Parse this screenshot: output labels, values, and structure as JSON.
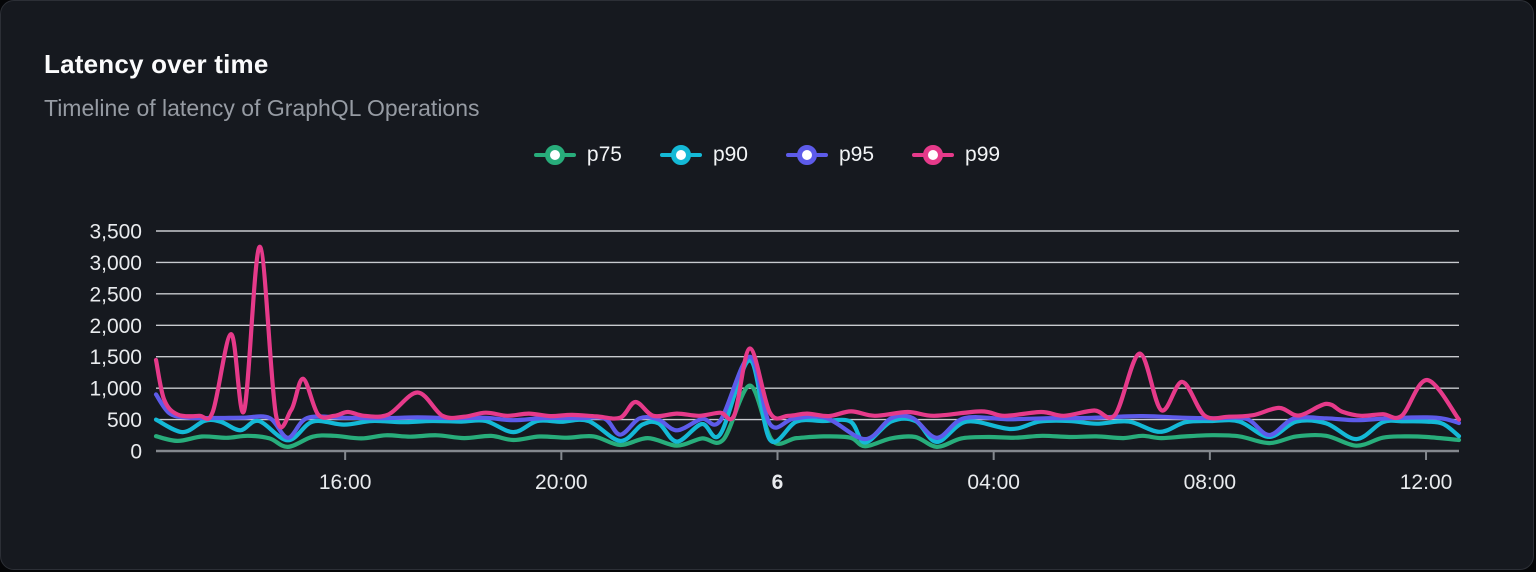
{
  "card": {
    "title": "Latency over time",
    "subtitle": "Timeline of latency of GraphQL Operations"
  },
  "colors": {
    "card_background": "#16191f",
    "card_border": "#2c2f36",
    "title_text": "#fbfbfc",
    "subtitle_text": "#969ba3",
    "gridline": "#d8dade",
    "axis_line": "#84888e",
    "tick_label": "#e9ebee",
    "p75": "#28ad7b",
    "p90": "#14b9d6",
    "p95": "#5d5bea",
    "p99": "#e63a8a"
  },
  "chart_data": {
    "type": "line",
    "title": "Latency over time",
    "subtitle": "Timeline of latency of GraphQL Operations",
    "legend_position": "top-center",
    "grid": true,
    "x_unit": "hours since chart start (~12:30 day 5)",
    "x_range": [
      0,
      24.11
    ],
    "y_range": [
      0,
      3500
    ],
    "y_ticks": [
      {
        "value": 0,
        "label": "0"
      },
      {
        "value": 500,
        "label": "500"
      },
      {
        "value": 1000,
        "label": "1,000"
      },
      {
        "value": 1500,
        "label": "1,500"
      },
      {
        "value": 2000,
        "label": "2,000"
      },
      {
        "value": 2500,
        "label": "2,500"
      },
      {
        "value": 3000,
        "label": "3,000"
      },
      {
        "value": 3500,
        "label": "3,500"
      }
    ],
    "x_ticks": [
      {
        "t": 3.5,
        "label": "16:00",
        "bold": false
      },
      {
        "t": 7.5,
        "label": "20:00",
        "bold": false
      },
      {
        "t": 11.5,
        "label": "6",
        "bold": true
      },
      {
        "t": 15.5,
        "label": "04:00",
        "bold": false
      },
      {
        "t": 19.5,
        "label": "08:00",
        "bold": false
      },
      {
        "t": 23.5,
        "label": "12:00",
        "bold": false
      }
    ],
    "series": [
      {
        "name": "p75",
        "color": "#28ad7b",
        "points": [
          [
            0,
            235
          ],
          [
            0.4,
            160
          ],
          [
            0.85,
            230
          ],
          [
            1.3,
            210
          ],
          [
            1.7,
            242
          ],
          [
            2.1,
            200
          ],
          [
            2.44,
            65
          ],
          [
            2.9,
            228
          ],
          [
            3.3,
            242
          ],
          [
            3.8,
            200
          ],
          [
            4.25,
            250
          ],
          [
            4.7,
            228
          ],
          [
            5.2,
            250
          ],
          [
            5.7,
            205
          ],
          [
            6.2,
            240
          ],
          [
            6.61,
            175
          ],
          [
            7.1,
            230
          ],
          [
            7.6,
            212
          ],
          [
            8.1,
            232
          ],
          [
            8.59,
            95
          ],
          [
            9.1,
            205
          ],
          [
            9.64,
            85
          ],
          [
            10.1,
            200
          ],
          [
            10.5,
            185
          ],
          [
            10.99,
            1040
          ],
          [
            11.4,
            170
          ],
          [
            11.85,
            205
          ],
          [
            12.35,
            232
          ],
          [
            12.85,
            212
          ],
          [
            13.12,
            75
          ],
          [
            13.6,
            200
          ],
          [
            14.05,
            222
          ],
          [
            14.45,
            65
          ],
          [
            14.9,
            200
          ],
          [
            15.4,
            222
          ],
          [
            15.9,
            212
          ],
          [
            16.4,
            242
          ],
          [
            16.9,
            222
          ],
          [
            17.4,
            232
          ],
          [
            17.9,
            205
          ],
          [
            18.25,
            242
          ],
          [
            18.6,
            205
          ],
          [
            19.05,
            232
          ],
          [
            19.55,
            252
          ],
          [
            20.05,
            232
          ],
          [
            20.6,
            125
          ],
          [
            21.1,
            232
          ],
          [
            21.65,
            242
          ],
          [
            22.21,
            85
          ],
          [
            22.7,
            212
          ],
          [
            23.1,
            232
          ],
          [
            23.52,
            222
          ],
          [
            24.11,
            175
          ]
        ]
      },
      {
        "name": "p90",
        "color": "#14b9d6",
        "points": [
          [
            0,
            500
          ],
          [
            0.49,
            300
          ],
          [
            0.9,
            480
          ],
          [
            1.2,
            465
          ],
          [
            1.56,
            330
          ],
          [
            1.9,
            478
          ],
          [
            2.44,
            170
          ],
          [
            2.9,
            468
          ],
          [
            3.48,
            420
          ],
          [
            4.0,
            478
          ],
          [
            4.55,
            458
          ],
          [
            5.1,
            478
          ],
          [
            5.65,
            468
          ],
          [
            6.1,
            478
          ],
          [
            6.61,
            300
          ],
          [
            7.05,
            475
          ],
          [
            7.5,
            465
          ],
          [
            8.0,
            478
          ],
          [
            8.59,
            160
          ],
          [
            9.0,
            420
          ],
          [
            9.3,
            440
          ],
          [
            9.64,
            150
          ],
          [
            10.1,
            430
          ],
          [
            10.44,
            265
          ],
          [
            10.99,
            1440
          ],
          [
            11.36,
            180
          ],
          [
            11.85,
            468
          ],
          [
            12.35,
            478
          ],
          [
            12.85,
            468
          ],
          [
            13.12,
            135
          ],
          [
            13.6,
            468
          ],
          [
            14.05,
            478
          ],
          [
            14.45,
            145
          ],
          [
            15.0,
            468
          ],
          [
            15.82,
            350
          ],
          [
            16.35,
            468
          ],
          [
            16.9,
            478
          ],
          [
            17.4,
            435
          ],
          [
            18.0,
            468
          ],
          [
            18.57,
            305
          ],
          [
            19.05,
            458
          ],
          [
            19.55,
            478
          ],
          [
            20.05,
            468
          ],
          [
            20.6,
            225
          ],
          [
            21.1,
            468
          ],
          [
            21.65,
            440
          ],
          [
            22.21,
            190
          ],
          [
            22.7,
            458
          ],
          [
            23.1,
            472
          ],
          [
            23.52,
            468
          ],
          [
            23.82,
            430
          ],
          [
            24.11,
            235
          ]
        ]
      },
      {
        "name": "p95",
        "color": "#5d5bea",
        "points": [
          [
            0,
            900
          ],
          [
            0.25,
            600
          ],
          [
            0.6,
            530
          ],
          [
            1.1,
            525
          ],
          [
            1.6,
            530
          ],
          [
            2.1,
            525
          ],
          [
            2.44,
            210
          ],
          [
            2.8,
            525
          ],
          [
            3.5,
            528
          ],
          [
            4.2,
            522
          ],
          [
            4.84,
            535
          ],
          [
            5.5,
            522
          ],
          [
            6.1,
            528
          ],
          [
            6.61,
            490
          ],
          [
            7.2,
            525
          ],
          [
            7.8,
            522
          ],
          [
            8.3,
            515
          ],
          [
            8.59,
            260
          ],
          [
            8.95,
            520
          ],
          [
            9.3,
            500
          ],
          [
            9.64,
            330
          ],
          [
            10.1,
            510
          ],
          [
            10.44,
            480
          ],
          [
            10.99,
            1500
          ],
          [
            11.36,
            430
          ],
          [
            11.8,
            515
          ],
          [
            12.4,
            525
          ],
          [
            13.12,
            190
          ],
          [
            13.6,
            520
          ],
          [
            14.0,
            525
          ],
          [
            14.45,
            210
          ],
          [
            14.95,
            520
          ],
          [
            15.8,
            505
          ],
          [
            16.5,
            522
          ],
          [
            17.2,
            525
          ],
          [
            18.2,
            555
          ],
          [
            18.99,
            530
          ],
          [
            19.6,
            520
          ],
          [
            20.18,
            510
          ],
          [
            20.6,
            255
          ],
          [
            21.05,
            515
          ],
          [
            21.65,
            520
          ],
          [
            22.21,
            490
          ],
          [
            22.8,
            520
          ],
          [
            23.52,
            535
          ],
          [
            23.85,
            510
          ],
          [
            24.11,
            445
          ]
        ]
      },
      {
        "name": "p99",
        "color": "#e63a8a",
        "points": [
          [
            0,
            1450
          ],
          [
            0.15,
            820
          ],
          [
            0.4,
            580
          ],
          [
            0.8,
            560
          ],
          [
            1.05,
            620
          ],
          [
            1.39,
            1860
          ],
          [
            1.63,
            640
          ],
          [
            1.92,
            3250
          ],
          [
            2.22,
            570
          ],
          [
            2.5,
            650
          ],
          [
            2.72,
            1150
          ],
          [
            3.0,
            580
          ],
          [
            3.3,
            560
          ],
          [
            3.55,
            620
          ],
          [
            3.85,
            560
          ],
          [
            4.3,
            580
          ],
          [
            4.84,
            930
          ],
          [
            5.3,
            560
          ],
          [
            5.7,
            545
          ],
          [
            6.1,
            610
          ],
          [
            6.5,
            560
          ],
          [
            6.9,
            595
          ],
          [
            7.3,
            555
          ],
          [
            7.7,
            575
          ],
          [
            8.15,
            550
          ],
          [
            8.59,
            530
          ],
          [
            8.87,
            780
          ],
          [
            9.2,
            560
          ],
          [
            9.64,
            595
          ],
          [
            10.05,
            560
          ],
          [
            10.44,
            610
          ],
          [
            10.7,
            570
          ],
          [
            10.99,
            1630
          ],
          [
            11.36,
            610
          ],
          [
            11.7,
            560
          ],
          [
            12.05,
            595
          ],
          [
            12.45,
            555
          ],
          [
            12.86,
            630
          ],
          [
            13.3,
            560
          ],
          [
            13.91,
            620
          ],
          [
            14.4,
            560
          ],
          [
            15.27,
            630
          ],
          [
            15.7,
            560
          ],
          [
            16.38,
            620
          ],
          [
            16.8,
            560
          ],
          [
            17.36,
            645
          ],
          [
            17.75,
            580
          ],
          [
            18.2,
            1550
          ],
          [
            18.6,
            650
          ],
          [
            18.99,
            1100
          ],
          [
            19.4,
            565
          ],
          [
            19.85,
            545
          ],
          [
            20.3,
            570
          ],
          [
            20.78,
            685
          ],
          [
            21.15,
            565
          ],
          [
            21.65,
            750
          ],
          [
            21.95,
            625
          ],
          [
            22.3,
            560
          ],
          [
            22.7,
            585
          ],
          [
            23.05,
            560
          ],
          [
            23.52,
            1130
          ],
          [
            24.11,
            500
          ]
        ]
      }
    ]
  }
}
